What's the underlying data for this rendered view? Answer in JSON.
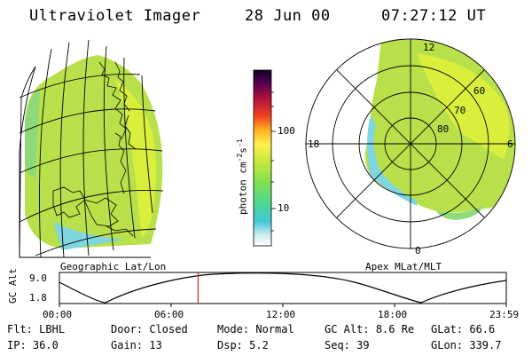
{
  "header": {
    "instrument": "Ultraviolet Imager",
    "date": "28 Jun 00",
    "time": "07:27:12 UT"
  },
  "map_left": {
    "label": "Geographic Lat/Lon"
  },
  "map_right": {
    "label": "Apex MLat/MLT",
    "mlt_labels": {
      "top": "12",
      "left": "18",
      "right": "6",
      "bottom": "0"
    },
    "lat_labels": [
      "60",
      "70",
      "80"
    ]
  },
  "colorbar": {
    "unit_label": "photon cm",
    "unit_sup1": "-2",
    "unit_mid": "s",
    "unit_sup2": "-1",
    "ticks": [
      "100",
      "10"
    ]
  },
  "alt_plot": {
    "ylabel": "GC Alt",
    "yticks": [
      "9.0",
      "1.8"
    ],
    "xticks": [
      "00:00",
      "06:00",
      "12:00",
      "18:00",
      "23:59"
    ],
    "marker_hour": 7.45
  },
  "params": {
    "row1": [
      {
        "key": "Flt:",
        "value": "LBHL"
      },
      {
        "key": "Door:",
        "value": "Closed"
      },
      {
        "key": "Mode:",
        "value": "Normal"
      },
      {
        "key": "GC Alt:",
        "value": "8.6 Re"
      },
      {
        "key": "GLat:",
        "value": "66.6"
      }
    ],
    "row2": [
      {
        "key": "IP:",
        "value": "36.0"
      },
      {
        "key": "Gain:",
        "value": "13"
      },
      {
        "key": "Dsp:",
        "value": "5.2"
      },
      {
        "key": "Seq:",
        "value": "39"
      },
      {
        "key": "GLon:",
        "value": "339.7"
      }
    ]
  },
  "colors": {
    "aurora_main": "#b8e04a",
    "aurora_bright": "#d9ef3c",
    "aurora_edge": "#6fd28a",
    "aurora_cyan": "#7fd6e0",
    "marker": "#e0201c"
  }
}
